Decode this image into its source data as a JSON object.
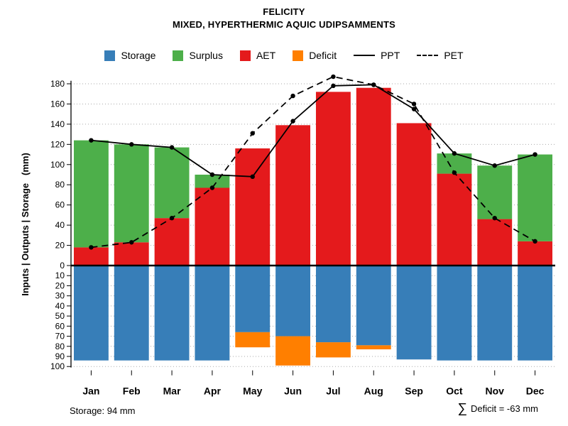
{
  "chart_data": {
    "type": "bar",
    "title": "FELICITY",
    "subtitle": "MIXED, HYPERTHERMIC AQUIC UDIPSAMMENTS",
    "ylabel": "Inputs | Outputs | Storage   (mm)",
    "categories": [
      "Jan",
      "Feb",
      "Mar",
      "Apr",
      "May",
      "Jun",
      "Jul",
      "Aug",
      "Sep",
      "Oct",
      "Nov",
      "Dec"
    ],
    "series": [
      {
        "name": "Storage",
        "type": "bar",
        "direction": "down",
        "color": "#377EB8",
        "values": [
          94,
          94,
          94,
          94,
          66,
          70,
          76,
          79,
          93,
          94,
          94,
          94
        ]
      },
      {
        "name": "Surplus",
        "type": "bar",
        "direction": "up",
        "stack": "above-AET",
        "color": "#4DAF4A",
        "values": [
          106,
          97,
          70,
          13,
          0,
          0,
          0,
          0,
          0,
          20,
          53,
          86
        ]
      },
      {
        "name": "AET",
        "type": "bar",
        "direction": "up",
        "color": "#E41A1C",
        "values": [
          18,
          23,
          47,
          77,
          116,
          139,
          172,
          176,
          141,
          91,
          46,
          24
        ]
      },
      {
        "name": "Deficit",
        "type": "bar",
        "direction": "down",
        "stack": "below-Storage",
        "color": "#FF7F00",
        "values": [
          0,
          0,
          0,
          0,
          15,
          29,
          15,
          4,
          0,
          0,
          0,
          0
        ]
      },
      {
        "name": "PPT",
        "type": "line",
        "style": "solid",
        "color": "#000000",
        "values": [
          124,
          120,
          117,
          90,
          88,
          143,
          178,
          179,
          155,
          111,
          99,
          110
        ]
      },
      {
        "name": "PET",
        "type": "line",
        "style": "dashed",
        "color": "#000000",
        "values": [
          18,
          23,
          47,
          77,
          131,
          168,
          187,
          179,
          160,
          92,
          47,
          24
        ]
      }
    ],
    "y_axis_upper": {
      "min": 0,
      "max": 180,
      "step": 20
    },
    "y_axis_lower": {
      "min": 0,
      "max": 100,
      "step": 10,
      "inverted": true
    },
    "grid": true,
    "legend_position": "top",
    "annotations": {
      "storage": "Storage: 94 mm",
      "sigma": "∑",
      "deficit_sum": "Deficit = -63 mm"
    }
  }
}
